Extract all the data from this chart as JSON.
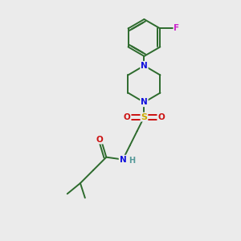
{
  "background_color": "#ebebeb",
  "fig_size": [
    3.0,
    3.0
  ],
  "dpi": 100,
  "atom_colors": {
    "C": "#2d6b2d",
    "N": "#1010dd",
    "O": "#cc1111",
    "S": "#ccaa00",
    "F": "#cc22cc",
    "H": "#559999"
  },
  "bond_color": "#2d6b2d",
  "bond_width": 1.4
}
